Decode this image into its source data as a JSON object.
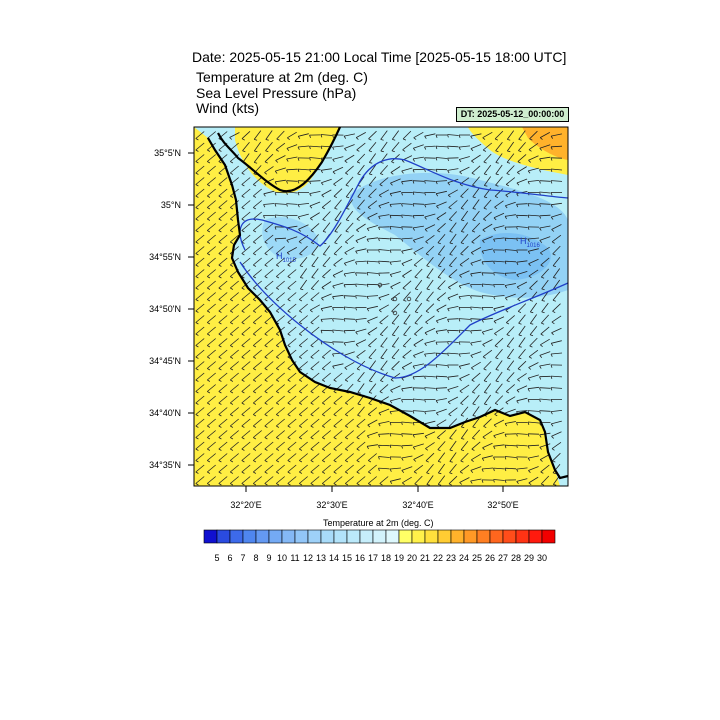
{
  "header": {
    "date_title": "Date: 2025-05-15  21:00 Local Time [2025-05-15  18:00 UTC]",
    "fields": [
      "Temperature at 2m   (deg. C)",
      "Sea Level Pressure   (hPa)",
      "Wind   (kts)"
    ],
    "dt_badge": "DT: 2025-05-12_00:00:00"
  },
  "map": {
    "lat_labels": [
      "35°5'N",
      "35°N",
      "34°55'N",
      "34°50'N",
      "34°45'N",
      "34°40'N",
      "34°35'N"
    ],
    "lon_labels": [
      "32°20'E",
      "32°30'E",
      "32°40'E",
      "32°50'E"
    ],
    "isobar_labels": [
      {
        "symbol": "H",
        "value": "1015"
      },
      {
        "symbol": "H",
        "value": "1016"
      }
    ],
    "colors": {
      "land": "#ffee44",
      "sea": "#b8eef8",
      "sea_cool": "#7fc6f4",
      "isobar": "#2040c8",
      "warm": "#ff4422"
    }
  },
  "colorbar": {
    "title": "Temperature at 2m  (deg. C)",
    "labels": [
      "5",
      "6",
      "7",
      "8",
      "9",
      "10",
      "11",
      "12",
      "13",
      "14",
      "15",
      "16",
      "17",
      "18",
      "19",
      "20",
      "21",
      "22",
      "23",
      "24",
      "25",
      "26",
      "27",
      "28",
      "29",
      "30"
    ],
    "colors": [
      "#1010d0",
      "#2a4be0",
      "#3d6aea",
      "#4f86ef",
      "#6499f2",
      "#74aaf4",
      "#84b8f6",
      "#92c6f8",
      "#9ed1f8",
      "#a8dbf9",
      "#b2e3fa",
      "#bbe9fa",
      "#c6eefb",
      "#d2f3fc",
      "#def8fd",
      "#ffff66",
      "#fff14a",
      "#ffe03c",
      "#ffcc33",
      "#ffb22b",
      "#ff9926",
      "#ff7f22",
      "#ff661e",
      "#ff4d1a",
      "#ff3314",
      "#ff1a0e",
      "#f20000"
    ]
  }
}
